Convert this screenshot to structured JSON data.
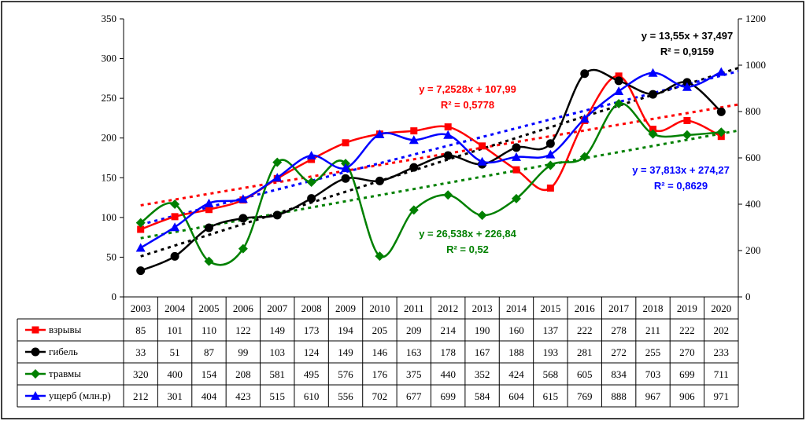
{
  "chart_data": {
    "type": "line",
    "categories": [
      "2003",
      "2004",
      "2005",
      "2006",
      "2007",
      "2008",
      "2009",
      "2010",
      "2011",
      "2012",
      "2013",
      "2014",
      "2015",
      "2016",
      "2017",
      "2018",
      "2019",
      "2020"
    ],
    "ylim_left": [
      0,
      350
    ],
    "ylim_right": [
      0,
      1200
    ],
    "yticks_left": [
      "0",
      "50",
      "100",
      "150",
      "200",
      "250",
      "300",
      "350"
    ],
    "yticks_right": [
      "0",
      "200",
      "400",
      "600",
      "800",
      "1000",
      "1200"
    ],
    "grid": false,
    "legend_placement": "table-bottom",
    "series": [
      {
        "name": "взрывы",
        "axis": "left",
        "color": "#ff0000",
        "marker": "square",
        "values": [
          85,
          101,
          110,
          122,
          149,
          173,
          194,
          205,
          209,
          214,
          190,
          160,
          137,
          222,
          278,
          211,
          222,
          202
        ]
      },
      {
        "name": "гибель",
        "axis": "left",
        "color": "#000000",
        "marker": "circle",
        "values": [
          33,
          51,
          87,
          99,
          103,
          124,
          149,
          146,
          163,
          178,
          167,
          188,
          193,
          281,
          272,
          255,
          270,
          233
        ]
      },
      {
        "name": "травмы",
        "axis": "right",
        "color": "#008000",
        "marker": "diamond",
        "values": [
          320,
          400,
          154,
          208,
          581,
          495,
          576,
          176,
          375,
          440,
          352,
          424,
          568,
          605,
          834,
          703,
          699,
          711
        ]
      },
      {
        "name": "ущерб (млн.р)",
        "axis": "right",
        "color": "#0000ff",
        "marker": "triangle",
        "values": [
          212,
          301,
          404,
          423,
          515,
          610,
          556,
          702,
          677,
          699,
          584,
          604,
          615,
          769,
          888,
          967,
          906,
          971
        ]
      }
    ],
    "trendlines": [
      {
        "series": "взрывы",
        "equation": "y = 7,2528x + 107,99",
        "r2": "R² = 0,5778",
        "color": "#ff0000"
      },
      {
        "series": "гибель",
        "equation": "y = 13,55x + 37,497",
        "r2": "R² = 0,9159",
        "color": "#000000"
      },
      {
        "series": "травмы",
        "equation": "y = 26,538x + 226,84",
        "r2": "R² = 0,52",
        "color": "#008000"
      },
      {
        "series": "ущерб (млн.р)",
        "equation": "y = 37,813x + 274,27",
        "r2": "R² = 0,8629",
        "color": "#0000ff"
      }
    ]
  }
}
